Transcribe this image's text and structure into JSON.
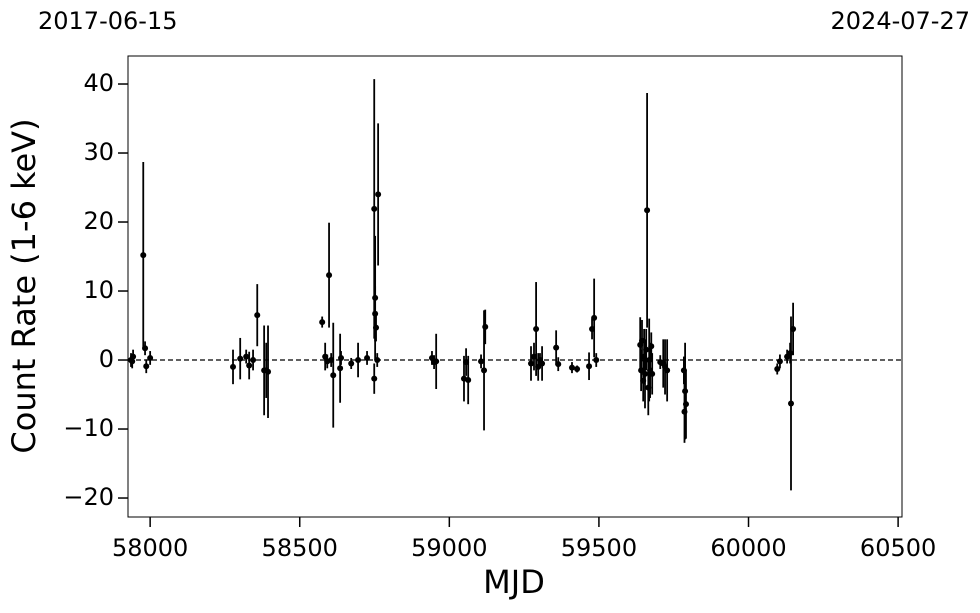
{
  "chart_data": {
    "type": "errorbar",
    "xlabel": "MJD",
    "ylabel": "Count Rate (1-6 keV)",
    "annotations": [
      "2017-06-15",
      "2024-07-27"
    ],
    "xlim": [
      57926,
      60513
    ],
    "ylim": [
      -22.75,
      44.06
    ],
    "xticks": [
      58000,
      58500,
      59000,
      59500,
      60000,
      60500
    ],
    "yticks": [
      {
        "value": -20,
        "label": "−20"
      },
      {
        "value": -10,
        "label": "−10"
      },
      0,
      10,
      20,
      30,
      40
    ],
    "hline": 0,
    "series": [
      {
        "color": "#000000",
        "x": [
          57936,
          57940,
          57943,
          57977,
          57983,
          57987,
          58000,
          58277,
          58301,
          58321,
          58331,
          58344,
          58358,
          58381,
          58388,
          58394,
          58575,
          58585,
          58592,
          58598,
          58605,
          58612,
          58635,
          58638,
          58672,
          58695,
          58725,
          58749,
          58749,
          58752,
          58752,
          58755,
          58759,
          58762,
          58942,
          58949,
          58956,
          59049,
          59056,
          59063,
          59106,
          59116,
          59120,
          59273,
          59283,
          59290,
          59297,
          59303,
          59310,
          59357,
          59364,
          59410,
          59427,
          59467,
          59477,
          59484,
          59491,
          59638,
          59641,
          59644,
          59648,
          59651,
          59654,
          59658,
          59661,
          59665,
          59668,
          59671,
          59675,
          59678,
          59705,
          59715,
          59721,
          59728,
          59784,
          59786,
          59788,
          59791,
          60096,
          60105,
          60129,
          60139,
          60142,
          60149
        ],
        "values": [
          0,
          -0.2,
          0.5,
          15.2,
          1.7,
          -0.9,
          0.3,
          -1,
          0.2,
          0.5,
          -0.8,
          0,
          6.5,
          -1.5,
          -1.5,
          -1.7,
          5.5,
          0.5,
          -0.2,
          12.3,
          0,
          -2.2,
          -1.2,
          0.3,
          -0.5,
          0,
          0.3,
          21.9,
          -2.7,
          6.7,
          9,
          4.7,
          0,
          24,
          0.3,
          -0.3,
          -0.2,
          -2.7,
          -0.3,
          -2.9,
          -0.2,
          -1.5,
          4.8,
          -0.5,
          0.5,
          4.5,
          -1,
          0,
          -0.5,
          1.8,
          -0.6,
          -1.1,
          -1.3,
          -0.9,
          4.5,
          6.1,
          0,
          2.2,
          -1.5,
          2.8,
          -3,
          0.5,
          -2,
          1.5,
          21.7,
          -4,
          0,
          -1.5,
          2,
          -2,
          -0.3,
          -0.5,
          -1,
          -1.5,
          -1.5,
          -7.5,
          -4.5,
          -6.4,
          -1.3,
          -0.2,
          0.5,
          1,
          -6.3,
          4.5
        ],
        "errors": [
          1,
          1,
          1,
          13.5,
          1,
          1,
          1,
          2.5,
          3,
          1,
          2,
          1.5,
          4.5,
          6.5,
          4,
          6.7,
          0.8,
          2,
          1,
          7.6,
          1,
          7.6,
          5,
          1,
          0.8,
          2.5,
          1,
          18.8,
          2.2,
          4,
          9,
          2,
          1,
          10.3,
          1,
          1,
          4,
          3.3,
          2,
          3.5,
          1,
          8.7,
          2.5,
          2.5,
          2,
          6.8,
          2,
          1,
          2.5,
          2.5,
          1,
          0.8,
          0.5,
          2,
          1.5,
          5.7,
          1,
          4,
          3,
          3,
          3,
          4,
          5,
          3,
          17,
          4,
          6,
          4,
          2,
          3,
          1,
          3.5,
          4,
          4.5,
          2,
          4.5,
          7,
          5,
          0.8,
          1,
          1,
          1.5,
          12.6,
          3.8
        ]
      }
    ]
  }
}
